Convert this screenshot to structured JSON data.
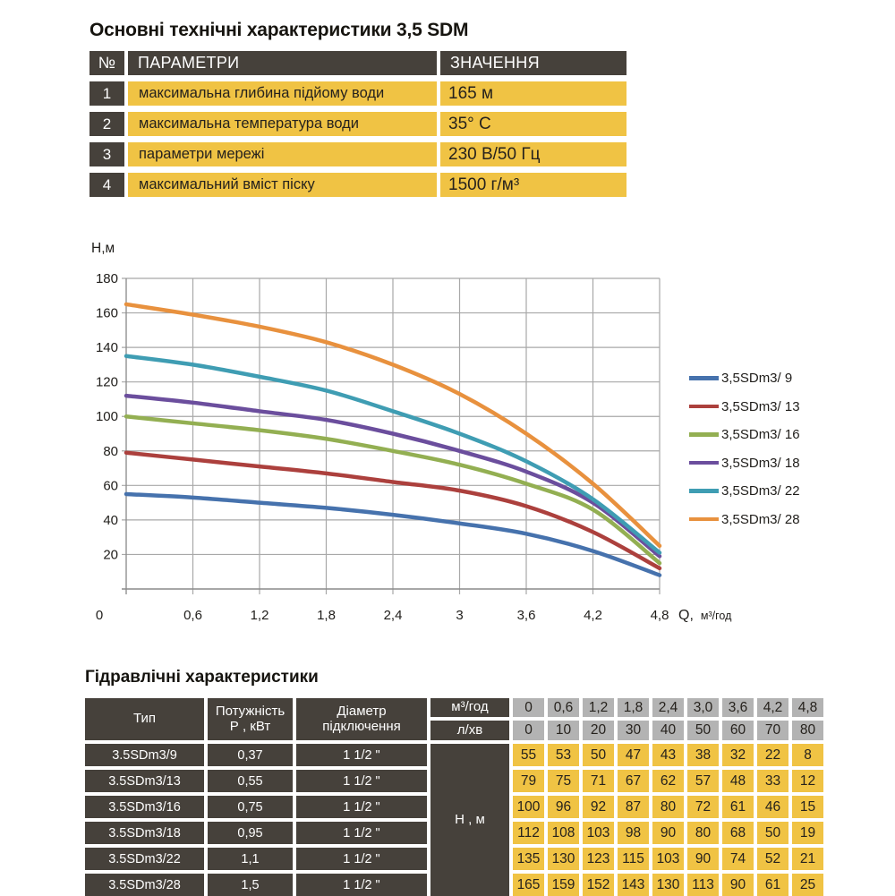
{
  "top_section": {
    "title": "Основні технічні характеристики 3,5 SDM",
    "table": {
      "headers": {
        "num": "№",
        "param": "ПАРАМЕТРИ",
        "value": "ЗНАЧЕННЯ"
      },
      "rows": [
        {
          "num": "1",
          "param": "максимальна глибина підйому води",
          "value": "165 м"
        },
        {
          "num": "2",
          "param": "максимальна температура води",
          "value": "35° C"
        },
        {
          "num": "3",
          "param": "параметри мережі",
          "value": "230 В/50 Гц"
        },
        {
          "num": "4",
          "param": "максимальний вміст піску",
          "value": "1500 г/м³"
        }
      ]
    }
  },
  "chart_data": {
    "type": "line",
    "title": "",
    "xlabel_prefix": "Q,",
    "xlabel_unit": "м³/год",
    "ylabel": "Н,м",
    "x": [
      0,
      0.6,
      1.2,
      1.8,
      2.4,
      3.0,
      3.6,
      4.2,
      4.8
    ],
    "x_tick_labels": [
      "0",
      "0,6",
      "1,2",
      "1,8",
      "2,4",
      "3",
      "3,6",
      "4,2",
      "4,8"
    ],
    "xlim": [
      0,
      4.8
    ],
    "ylim": [
      0,
      180
    ],
    "y_ticks": [
      20,
      40,
      60,
      80,
      100,
      120,
      140,
      160,
      180
    ],
    "grid": true,
    "legend_position": "right",
    "series": [
      {
        "name": "3,5SDm3/ 9",
        "color": "#4672AD",
        "values": [
          55,
          53,
          50,
          47,
          43,
          38,
          32,
          22,
          8
        ]
      },
      {
        "name": "3,5SDm3/ 13",
        "color": "#AC403D",
        "values": [
          79,
          75,
          71,
          67,
          62,
          57,
          48,
          33,
          12
        ]
      },
      {
        "name": "3,5SDm3/ 16",
        "color": "#93AF52",
        "values": [
          100,
          96,
          92,
          87,
          80,
          72,
          61,
          46,
          15
        ]
      },
      {
        "name": "3,5SDm3/ 18",
        "color": "#6B4E9D",
        "values": [
          112,
          108,
          103,
          98,
          90,
          80,
          68,
          50,
          19
        ]
      },
      {
        "name": "3,5SDm3/ 22",
        "color": "#3F9DB3",
        "values": [
          135,
          130,
          123,
          115,
          103,
          90,
          74,
          52,
          21
        ]
      },
      {
        "name": "3,5SDm3/ 28",
        "color": "#E8913E",
        "values": [
          165,
          159,
          152,
          143,
          130,
          113,
          90,
          61,
          25
        ]
      }
    ]
  },
  "bottom_section": {
    "title": "Гідравлічні характеристики",
    "table": {
      "col_headers": {
        "type": "Тип",
        "power_l1": "Потужність",
        "power_l2": "Р , кВт",
        "diameter_l1": "Діаметр",
        "diameter_l2": "підключення",
        "flow_unit_1": "м³/год",
        "flow_unit_2": "л/хв",
        "head_unit": "Н , м"
      },
      "flow_m3h": [
        "0",
        "0,6",
        "1,2",
        "1,8",
        "2,4",
        "3,0",
        "3,6",
        "4,2",
        "4,8"
      ],
      "flow_lmin": [
        "0",
        "10",
        "20",
        "30",
        "40",
        "50",
        "60",
        "70",
        "80"
      ],
      "rows": [
        {
          "type": "3.5SDm3/9",
          "power": "0,37",
          "diameter": "1 1/2 \"",
          "head": [
            55,
            53,
            50,
            47,
            43,
            38,
            32,
            22,
            8
          ]
        },
        {
          "type": "3.5SDm3/13",
          "power": "0,55",
          "diameter": "1 1/2 \"",
          "head": [
            79,
            75,
            71,
            67,
            62,
            57,
            48,
            33,
            12
          ]
        },
        {
          "type": "3.5SDm3/16",
          "power": "0,75",
          "diameter": "1 1/2 \"",
          "head": [
            100,
            96,
            92,
            87,
            80,
            72,
            61,
            46,
            15
          ]
        },
        {
          "type": "3.5SDm3/18",
          "power": "0,95",
          "diameter": "1 1/2 \"",
          "head": [
            112,
            108,
            103,
            98,
            90,
            80,
            68,
            50,
            19
          ]
        },
        {
          "type": "3.5SDm3/22",
          "power": "1,1",
          "diameter": "1 1/2 \"",
          "head": [
            135,
            130,
            123,
            115,
            103,
            90,
            74,
            52,
            21
          ]
        },
        {
          "type": "3.5SDm3/28",
          "power": "1,5",
          "diameter": "1 1/2 \"",
          "head": [
            165,
            159,
            152,
            143,
            130,
            113,
            90,
            61,
            25
          ]
        }
      ]
    }
  },
  "colors": {
    "dark_cell": "#46413B",
    "yellow_cell": "#F0C344",
    "gray_cell": "#B3B3B3",
    "grid_line": "#A8A8A8",
    "axis_line": "#8A8A8A",
    "text": "#1F1D1A"
  }
}
